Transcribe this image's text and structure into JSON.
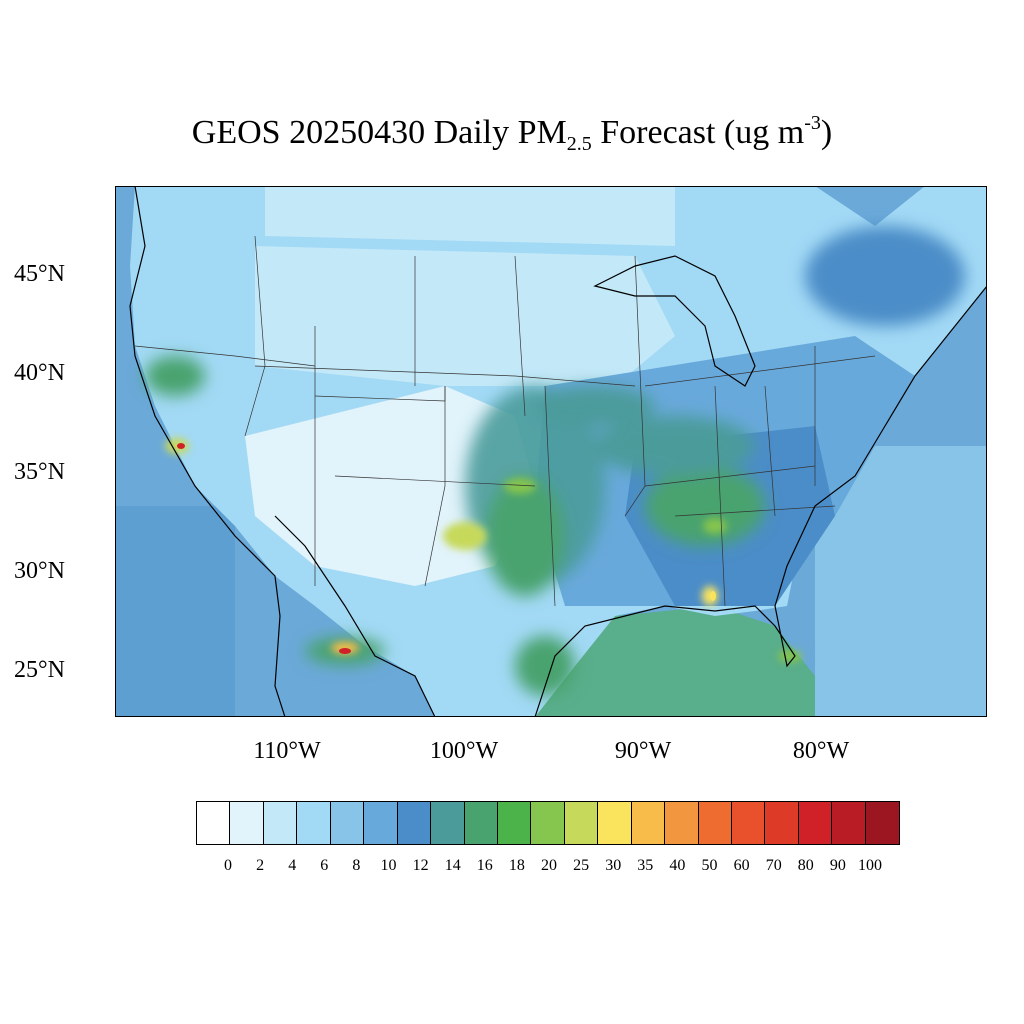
{
  "title": {
    "main": "GEOS 20250430 Daily PM",
    "sub": "2.5",
    "mid": " Forecast (ug m",
    "sup": "-3",
    "end": ")"
  },
  "axes": {
    "y_labels": [
      "45°N",
      "40°N",
      "35°N",
      "30°N",
      "25°N"
    ],
    "x_labels": [
      "110°W",
      "100°W",
      "90°W",
      "80°W"
    ]
  },
  "colorbar": {
    "labels": [
      "0",
      "2",
      "4",
      "6",
      "8",
      "10",
      "12",
      "14",
      "16",
      "18",
      "20",
      "25",
      "30",
      "35",
      "40",
      "50",
      "60",
      "70",
      "80",
      "90",
      "100"
    ],
    "colors": [
      "#ffffff",
      "#e1f3fb",
      "#c3e8f8",
      "#a2d9f5",
      "#88c3e8",
      "#68a9db",
      "#4b8dc8",
      "#4b9b9b",
      "#49a36e",
      "#4bb34a",
      "#86c54e",
      "#c7d95a",
      "#fae45e",
      "#f7bc4a",
      "#f39640",
      "#ef6c30",
      "#e9502c",
      "#de3a28",
      "#d02129",
      "#b91c25",
      "#9b1620"
    ]
  },
  "map": {
    "ocean_color": "#6ba9d9",
    "land_base_color": "#c3e8f8",
    "hotspots": [
      {
        "name": "central-california-fire",
        "level": "70"
      },
      {
        "name": "mexico-north-fire",
        "level": "70"
      },
      {
        "name": "oklahoma-texas-plume",
        "level": "25"
      },
      {
        "name": "florida-panhandle",
        "level": "30"
      }
    ]
  }
}
